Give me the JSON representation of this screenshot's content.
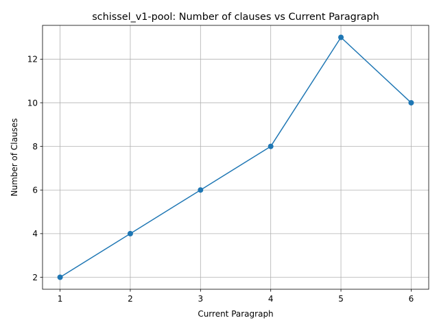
{
  "chart_data": {
    "type": "line",
    "title": "schissel_v1-pool: Number of clauses vs Current Paragraph",
    "xlabel": "Current Paragraph",
    "ylabel": "Number of Clauses",
    "x": [
      1,
      2,
      3,
      4,
      5,
      6
    ],
    "series": [
      {
        "values": [
          2,
          4,
          6,
          8,
          13,
          10
        ]
      }
    ],
    "xlim": [
      0.75,
      6.25
    ],
    "ylim": [
      1.45,
      13.55
    ],
    "xticks": [
      "1",
      "2",
      "3",
      "4",
      "5",
      "6"
    ],
    "yticks": [
      "2",
      "4",
      "6",
      "8",
      "10",
      "12"
    ],
    "grid": true,
    "marker": "circle",
    "colors": {
      "line": "#1f77b4",
      "grid": "#b0b0b0",
      "axes": "#000000"
    }
  }
}
